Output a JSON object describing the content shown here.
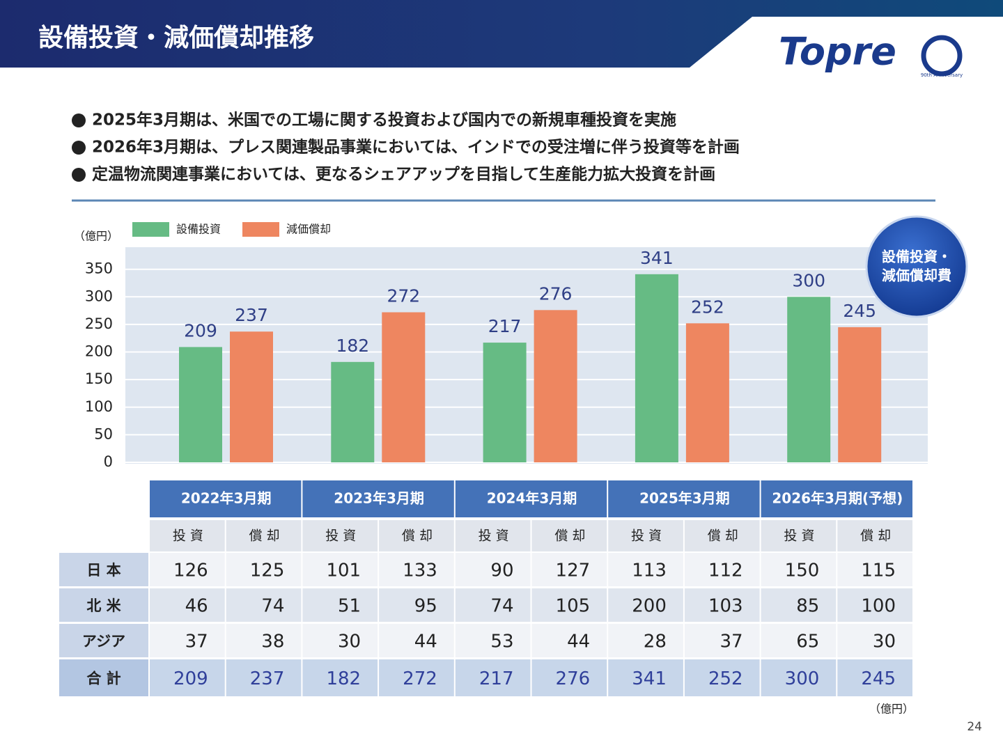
{
  "header": {
    "title": "設備投資・減価償却推移",
    "logo": "Topre",
    "anniversary": "90th Anniversary"
  },
  "bullets": [
    "2025年3月期は、米国での工場に関する投資および国内での新規車種投資を実施",
    "2026年3月期は、プレス関連製品事業においては、インドでの受注増に伴う投資等を計画",
    "定温物流関連事業においては、更なるシェアアップを目指して生産能力拡大投資を計画"
  ],
  "chart_data": {
    "type": "bar",
    "y_unit_label": "（億円）",
    "categories": [
      null,
      null,
      null,
      null,
      null
    ],
    "series": [
      {
        "name": "設備投資",
        "color": "#66bb84",
        "values": [
          209,
          182,
          217,
          341,
          300
        ]
      },
      {
        "name": "減価償却",
        "color": "#ee8660",
        "values": [
          237,
          272,
          276,
          252,
          245
        ]
      }
    ],
    "ylim": [
      0,
      390
    ],
    "yticks": [
      0,
      50,
      100,
      150,
      200,
      250,
      300,
      350
    ],
    "grid": true,
    "badge": [
      "設備投資・",
      "減価償却費"
    ]
  },
  "table": {
    "periods": [
      "2022年3月期",
      "2023年3月期",
      "2024年3月期",
      "2025年3月期",
      "2026年3月期(予想)"
    ],
    "subheaders": [
      "投 資",
      "償 却",
      "投 資",
      "償 却",
      "投 資",
      "償 却",
      "投 資",
      "償 却",
      "投 資",
      "償 却"
    ],
    "rows": [
      {
        "label": "日 本",
        "values": [
          126,
          125,
          101,
          133,
          90,
          127,
          113,
          112,
          150,
          115
        ]
      },
      {
        "label": "北 米",
        "values": [
          46,
          74,
          51,
          95,
          74,
          105,
          200,
          103,
          85,
          100
        ]
      },
      {
        "label": "アジア",
        "values": [
          37,
          38,
          30,
          44,
          53,
          44,
          28,
          37,
          65,
          30
        ]
      },
      {
        "label": "合 計",
        "values": [
          209,
          237,
          182,
          272,
          217,
          276,
          341,
          252,
          300,
          245
        ]
      }
    ],
    "unit": "（億円）"
  },
  "page_number": "24"
}
